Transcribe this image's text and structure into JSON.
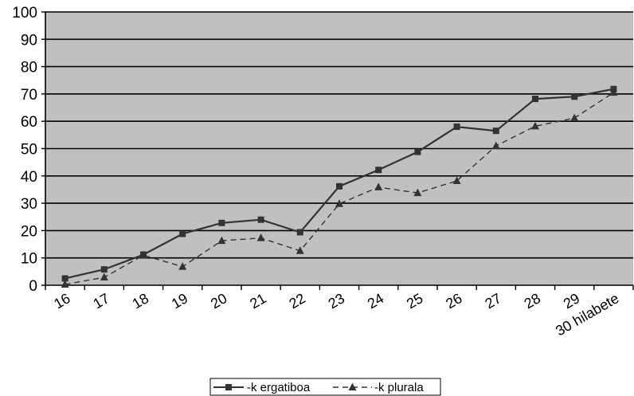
{
  "chart_data": {
    "type": "line",
    "categories": [
      "16",
      "17",
      "18",
      "19",
      "20",
      "21",
      "22",
      "23",
      "24",
      "25",
      "26",
      "27",
      "28",
      "29",
      "30 hilabete"
    ],
    "series": [
      {
        "name": "-k ergatiboa",
        "marker": "square",
        "line_style": "solid",
        "values": [
          2.5,
          5.8,
          11.2,
          18.8,
          22.8,
          24.0,
          19.4,
          36.2,
          42.2,
          48.8,
          58.0,
          56.5,
          68.2,
          69.0,
          71.8
        ]
      },
      {
        "name": "-k plurala",
        "marker": "triangle",
        "line_style": "dashed",
        "values": [
          0.3,
          2.9,
          11.0,
          6.8,
          16.3,
          17.3,
          12.6,
          29.8,
          35.9,
          33.8,
          38.2,
          51.0,
          58.2,
          61.2,
          70.5
        ]
      }
    ],
    "yticks": [
      "0",
      "10",
      "20",
      "30",
      "40",
      "50",
      "60",
      "70",
      "80",
      "90",
      "100"
    ],
    "ylim": [
      0,
      100
    ],
    "xlabel": "",
    "ylabel": "",
    "title": "",
    "grid": true,
    "plot_background": "#c0c0c0",
    "legend_position": "bottom-center"
  },
  "colors": {
    "line": "#333333",
    "grid": "#000000",
    "plot_background": "#c0c0c0"
  }
}
